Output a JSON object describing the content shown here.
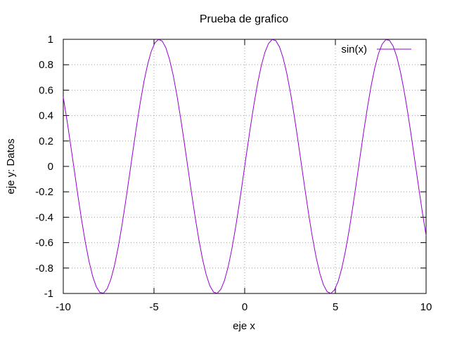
{
  "chart_data": {
    "type": "line",
    "title": "Prueba de grafico",
    "xlabel": "eje x",
    "ylabel": "eje y: Datos",
    "xlim": [
      -10,
      10
    ],
    "ylim": [
      -1,
      1
    ],
    "grid": true,
    "legend_position": "top-right",
    "x_ticks": [
      -10,
      -5,
      0,
      5,
      10
    ],
    "x_tick_labels": [
      "-10",
      "-5",
      "0",
      "5",
      "10"
    ],
    "y_ticks": [
      -1,
      -0.8,
      -0.6,
      -0.4,
      -0.2,
      0,
      0.2,
      0.4,
      0.6,
      0.8,
      1
    ],
    "y_tick_labels": [
      "-1",
      "-0.8",
      "-0.6",
      "-0.4",
      "-0.2",
      "0",
      "0.2",
      "0.4",
      "0.6",
      "0.8",
      "1"
    ],
    "series": [
      {
        "name": "sin(x)",
        "color": "#9400d3",
        "function": "sin(x)",
        "x_range": [
          -10,
          10
        ],
        "samples": 100
      }
    ]
  }
}
